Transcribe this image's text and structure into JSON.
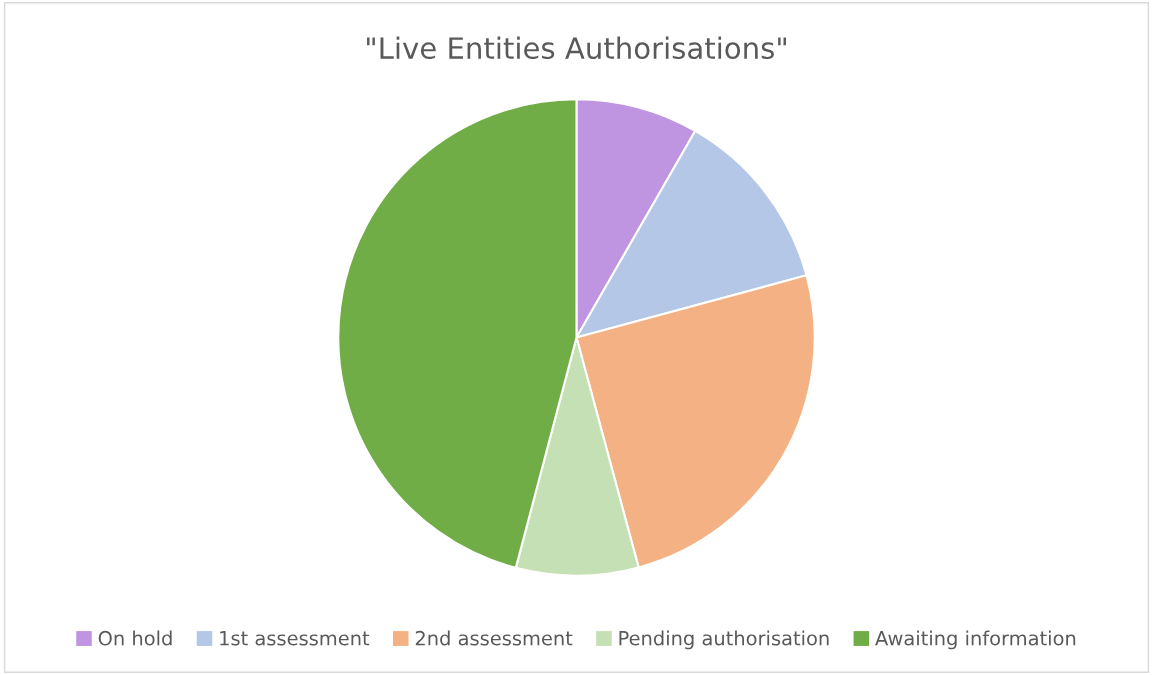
{
  "chart_data": {
    "type": "pie",
    "title": "\"Live Entities Authorisations\"",
    "categories": [
      "On hold",
      "1st assessment",
      "2nd assessment",
      "Pending authorisation",
      "Awaiting information"
    ],
    "values": [
      8.3,
      12.5,
      25,
      8.3,
      45.9
    ],
    "colors": [
      "#bf94e0",
      "#b4c7e7",
      "#f4b183",
      "#c5e0b4",
      "#70ad47"
    ],
    "legend": "bottom"
  }
}
